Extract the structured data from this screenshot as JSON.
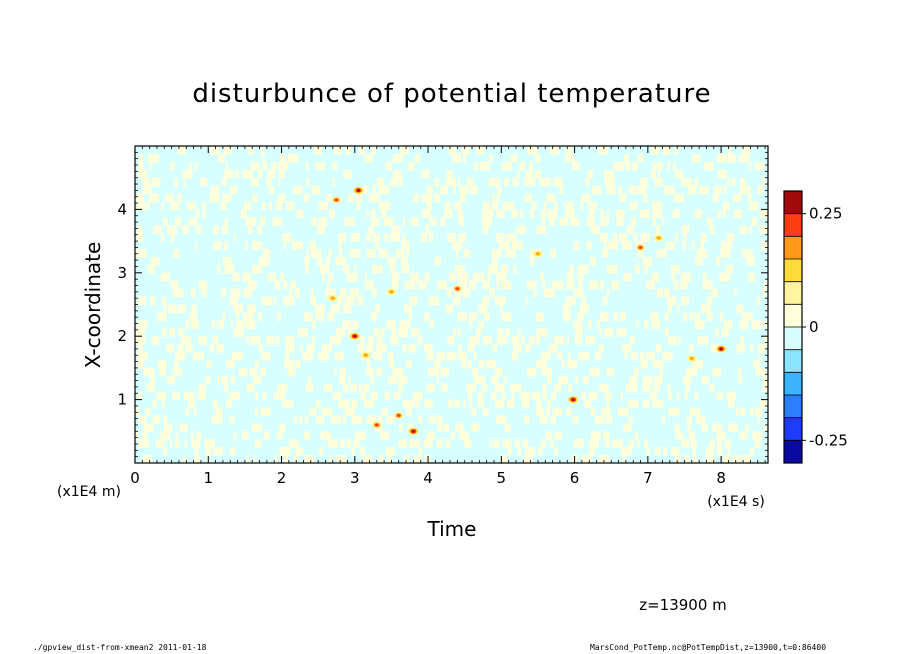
{
  "chart_data": {
    "type": "heatmap",
    "title": "disturbunce of potential temperature",
    "xlabel": "Time",
    "ylabel": "X-coordinate",
    "x_multiplier": "(x1E4 s)",
    "y_multiplier": "(x1E4 m)",
    "xlim": [
      0,
      8.64
    ],
    "ylim": [
      0,
      5
    ],
    "x_ticks": [
      "0",
      "1",
      "2",
      "3",
      "4",
      "5",
      "6",
      "7",
      "8"
    ],
    "x_tick_values": [
      0,
      1,
      2,
      3,
      4,
      5,
      6,
      7,
      8
    ],
    "y_ticks": [
      "1",
      "2",
      "3",
      "4"
    ],
    "y_tick_values": [
      1,
      2,
      3,
      4
    ],
    "grid": false,
    "colorbar": {
      "labels": [
        "0.25",
        "0",
        "-0.25"
      ],
      "label_values": [
        0.25,
        0,
        -0.25
      ],
      "levels": [
        -0.3,
        -0.25,
        -0.2,
        -0.15,
        -0.1,
        -0.05,
        0,
        0.05,
        0.1,
        0.15,
        0.2,
        0.25,
        0.3
      ],
      "colors": [
        "#0a0aa0",
        "#1e3cff",
        "#2d7dff",
        "#3cb4ff",
        "#8ae6ff",
        "#d8ffff",
        "#ffffdc",
        "#fff5a0",
        "#ffdc3c",
        "#ff9a1e",
        "#ff3c14",
        "#a00a0a"
      ]
    },
    "background_pattern": "vertical streaks alternating between -0.05..0 (light cyan) and 0..0.05 (light yellow)",
    "hotspots": [
      {
        "x": 2.75,
        "y": 4.15,
        "value": 0.2
      },
      {
        "x": 3.05,
        "y": 4.3,
        "value": 0.25
      },
      {
        "x": 3.0,
        "y": 2.0,
        "value": 0.25
      },
      {
        "x": 2.7,
        "y": 2.6,
        "value": 0.15
      },
      {
        "x": 3.15,
        "y": 1.7,
        "value": 0.15
      },
      {
        "x": 3.5,
        "y": 2.7,
        "value": 0.15
      },
      {
        "x": 3.3,
        "y": 0.6,
        "value": 0.2
      },
      {
        "x": 3.6,
        "y": 0.75,
        "value": 0.2
      },
      {
        "x": 3.8,
        "y": 0.5,
        "value": 0.25
      },
      {
        "x": 4.4,
        "y": 2.75,
        "value": 0.2
      },
      {
        "x": 5.5,
        "y": 3.3,
        "value": 0.15
      },
      {
        "x": 5.98,
        "y": 1.0,
        "value": 0.25
      },
      {
        "x": 6.9,
        "y": 3.4,
        "value": 0.2
      },
      {
        "x": 7.15,
        "y": 3.55,
        "value": 0.15
      },
      {
        "x": 7.6,
        "y": 1.65,
        "value": 0.15
      },
      {
        "x": 8.0,
        "y": 1.8,
        "value": 0.25
      }
    ]
  },
  "annotation": "z=13900 m",
  "footer": {
    "left": "./gpview_dist-from-xmean2  2011-01-18",
    "right": "MarsCond_PotTemp.nc@PotTempDist,z=13900,t=0:86400"
  }
}
